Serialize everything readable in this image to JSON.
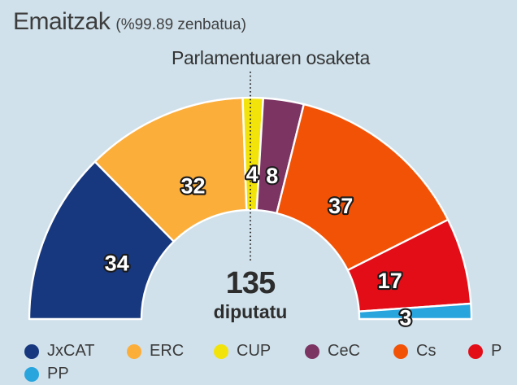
{
  "header": {
    "title": "Emaitzak",
    "subtitle": "(%99.89 zenbatua)"
  },
  "chart_data": {
    "type": "half-donut-parliament",
    "title": "Parlamentuaren osaketa",
    "total_seats": 135,
    "center": {
      "value": "135",
      "label": "diputatu"
    },
    "legend_position": "bottom",
    "categories": [
      "JxCAT",
      "ERC",
      "CUP",
      "CeC",
      "Cs",
      "P",
      "PP"
    ],
    "values": [
      34,
      32,
      4,
      8,
      37,
      17,
      3
    ],
    "segments": [
      {
        "party": "JxCAT",
        "seats": 34,
        "color": "#17387E"
      },
      {
        "party": "ERC",
        "seats": 32,
        "color": "#FCAE3B"
      },
      {
        "party": "CUP",
        "seats": 4,
        "color": "#F2E30B"
      },
      {
        "party": "CeC",
        "seats": 8,
        "color": "#7C3463"
      },
      {
        "party": "Cs",
        "seats": 37,
        "color": "#F25206"
      },
      {
        "party": "P",
        "seats": 17,
        "color": "#E30D18"
      },
      {
        "party": "PP",
        "seats": 3,
        "color": "#29A5DE"
      }
    ],
    "background_color": "#D0E1EB"
  }
}
